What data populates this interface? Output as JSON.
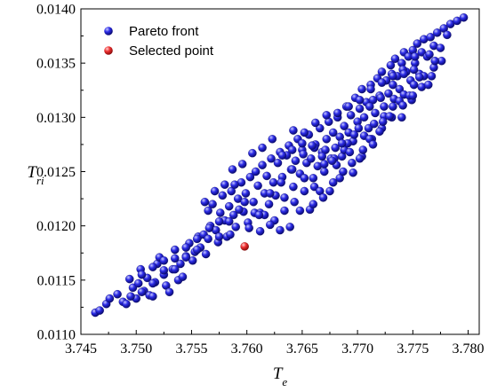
{
  "chart_data": {
    "type": "scatter",
    "xlabel": "T",
    "xlabel_sub": "e",
    "ylabel": "T",
    "ylabel_sub": "ri",
    "xlim": [
      3.745,
      3.781
    ],
    "ylim": [
      0.011,
      0.014
    ],
    "x_ticks": [
      3.745,
      3.75,
      3.755,
      3.76,
      3.765,
      3.77,
      3.775,
      3.78
    ],
    "x_tick_labels": [
      "3.745",
      "3.750",
      "3.755",
      "3.760",
      "3.765",
      "3.770",
      "3.775",
      "3.780"
    ],
    "y_ticks": [
      0.011,
      0.0115,
      0.012,
      0.0125,
      0.013,
      0.0135,
      0.014
    ],
    "y_tick_labels": [
      "0.0110",
      "0.0115",
      "0.0120",
      "0.0125",
      "0.0130",
      "0.0135",
      "0.0140"
    ],
    "grid": false,
    "legend_position": "top-left",
    "series": [
      {
        "name": "Pareto front",
        "color": "#2b2bd6",
        "points": [
          [
            3.7463,
            0.0112
          ],
          [
            3.7467,
            0.01122
          ],
          [
            3.7473,
            0.01128
          ],
          [
            3.7476,
            0.01133
          ],
          [
            3.7483,
            0.01137
          ],
          [
            3.7488,
            0.0113
          ],
          [
            3.7491,
            0.01128
          ],
          [
            3.7494,
            0.01151
          ],
          [
            3.7497,
            0.01143
          ],
          [
            3.75,
            0.01133
          ],
          [
            3.7502,
            0.01147
          ],
          [
            3.7504,
            0.0116
          ],
          [
            3.7507,
            0.0114
          ],
          [
            3.751,
            0.01152
          ],
          [
            3.7512,
            0.01136
          ],
          [
            3.7515,
            0.01135
          ],
          [
            3.7517,
            0.01148
          ],
          [
            3.7519,
            0.01165
          ],
          [
            3.7521,
            0.01171
          ],
          [
            3.7525,
            0.01155
          ],
          [
            3.7527,
            0.01145
          ],
          [
            3.753,
            0.01139
          ],
          [
            3.7533,
            0.0116
          ],
          [
            3.7535,
            0.01178
          ],
          [
            3.7538,
            0.0115
          ],
          [
            3.754,
            0.01165
          ],
          [
            3.7542,
            0.01153
          ],
          [
            3.7545,
            0.01172
          ],
          [
            3.7548,
            0.01184
          ],
          [
            3.7551,
            0.01168
          ],
          [
            3.7553,
            0.01176
          ],
          [
            3.7556,
            0.0119
          ],
          [
            3.7558,
            0.0118
          ],
          [
            3.7561,
            0.01192
          ],
          [
            3.7563,
            0.01174
          ],
          [
            3.7565,
            0.01214
          ],
          [
            3.7567,
            0.012
          ],
          [
            3.7569,
            0.0122
          ],
          [
            3.7572,
            0.01196
          ],
          [
            3.7574,
            0.01185
          ],
          [
            3.7576,
            0.01212
          ],
          [
            3.7578,
            0.01228
          ],
          [
            3.758,
            0.01205
          ],
          [
            3.7582,
            0.0119
          ],
          [
            3.7584,
            0.01218
          ],
          [
            3.7586,
            0.01232
          ],
          [
            3.7588,
            0.0121
          ],
          [
            3.759,
            0.01199
          ],
          [
            3.7592,
            0.01225
          ],
          [
            3.7595,
            0.0124
          ],
          [
            3.7597,
            0.01213
          ],
          [
            3.7599,
            0.0123
          ],
          [
            3.7601,
            0.01203
          ],
          [
            3.7603,
            0.01245
          ],
          [
            3.7606,
            0.01222
          ],
          [
            3.7608,
            0.0125
          ],
          [
            3.761,
            0.01237
          ],
          [
            3.7612,
            0.01212
          ],
          [
            3.7614,
            0.01256
          ],
          [
            3.7616,
            0.0123
          ],
          [
            3.7618,
            0.01246
          ],
          [
            3.762,
            0.0122
          ],
          [
            3.7622,
            0.01262
          ],
          [
            3.7624,
            0.0124
          ],
          [
            3.7626,
            0.01228
          ],
          [
            3.7628,
            0.01258
          ],
          [
            3.763,
            0.01268
          ],
          [
            3.7632,
            0.01245
          ],
          [
            3.7634,
            0.01226
          ],
          [
            3.7636,
            0.01265
          ],
          [
            3.7638,
            0.01274
          ],
          [
            3.764,
            0.01252
          ],
          [
            3.7642,
            0.01236
          ],
          [
            3.7644,
            0.0126
          ],
          [
            3.7646,
            0.0128
          ],
          [
            3.7648,
            0.01248
          ],
          [
            3.765,
            0.0127
          ],
          [
            3.7652,
            0.01232
          ],
          [
            3.7654,
            0.01258
          ],
          [
            3.7656,
            0.01284
          ],
          [
            3.7658,
            0.01262
          ],
          [
            3.766,
            0.01244
          ],
          [
            3.7662,
            0.01275
          ],
          [
            3.7664,
            0.01255
          ],
          [
            3.7666,
            0.0129
          ],
          [
            3.7668,
            0.01268
          ],
          [
            3.767,
            0.0125
          ],
          [
            3.7672,
            0.0128
          ],
          [
            3.7674,
            0.01296
          ],
          [
            3.7676,
            0.01262
          ],
          [
            3.7678,
            0.01286
          ],
          [
            3.768,
            0.01272
          ],
          [
            3.7682,
            0.013
          ],
          [
            3.7684,
            0.01282
          ],
          [
            3.7686,
            0.01264
          ],
          [
            3.7688,
            0.01292
          ],
          [
            3.769,
            0.0131
          ],
          [
            3.7692,
            0.01286
          ],
          [
            3.7694,
            0.01302
          ],
          [
            3.7696,
            0.01278
          ],
          [
            3.7698,
            0.01318
          ],
          [
            3.77,
            0.01296
          ],
          [
            3.7702,
            0.01308
          ],
          [
            3.7704,
            0.01326
          ],
          [
            3.7706,
            0.013
          ],
          [
            3.7708,
            0.01314
          ],
          [
            3.771,
            0.0129
          ],
          [
            3.7712,
            0.0133
          ],
          [
            3.7714,
            0.01316
          ],
          [
            3.7716,
            0.01304
          ],
          [
            3.7718,
            0.01336
          ],
          [
            3.772,
            0.0132
          ],
          [
            3.7722,
            0.01342
          ],
          [
            3.7724,
            0.0131
          ],
          [
            3.7726,
            0.01334
          ],
          [
            3.7728,
            0.01322
          ],
          [
            3.773,
            0.01348
          ],
          [
            3.7732,
            0.0133
          ],
          [
            3.7734,
            0.01354
          ],
          [
            3.7736,
            0.01338
          ],
          [
            3.7738,
            0.01326
          ],
          [
            3.774,
            0.0135
          ],
          [
            3.7742,
            0.0136
          ],
          [
            3.7744,
            0.01342
          ],
          [
            3.7746,
            0.01356
          ],
          [
            3.7748,
            0.01334
          ],
          [
            3.775,
            0.01362
          ],
          [
            3.7752,
            0.0135
          ],
          [
            3.7754,
            0.01368
          ],
          [
            3.7756,
            0.0134
          ],
          [
            3.7758,
            0.0136
          ],
          [
            3.776,
            0.01372
          ],
          [
            3.7763,
            0.01356
          ],
          [
            3.7766,
            0.01374
          ],
          [
            3.7769,
            0.01366
          ],
          [
            3.7772,
            0.01378
          ],
          [
            3.7775,
            0.01364
          ],
          [
            3.7778,
            0.01382
          ],
          [
            3.7781,
            0.01376
          ],
          [
            3.7784,
            0.01386
          ],
          [
            3.779,
            0.01389
          ],
          [
            3.7796,
            0.01392
          ],
          [
            3.7562,
            0.01222
          ],
          [
            3.7571,
            0.01232
          ],
          [
            3.758,
            0.01238
          ],
          [
            3.7589,
            0.01238
          ],
          [
            3.7598,
            0.01222
          ],
          [
            3.7607,
            0.01212
          ],
          [
            3.7616,
            0.0121
          ],
          [
            3.7625,
            0.01205
          ],
          [
            3.7634,
            0.01214
          ],
          [
            3.7643,
            0.01222
          ],
          [
            3.7652,
            0.01244
          ],
          [
            3.7661,
            0.01236
          ],
          [
            3.767,
            0.01257
          ],
          [
            3.7679,
            0.01262
          ],
          [
            3.7688,
            0.0127
          ],
          [
            3.7697,
            0.01284
          ],
          [
            3.7706,
            0.01283
          ],
          [
            3.7715,
            0.01294
          ],
          [
            3.7724,
            0.01301
          ],
          [
            3.7733,
            0.01317
          ],
          [
            3.7742,
            0.01321
          ],
          [
            3.7751,
            0.0133
          ],
          [
            3.776,
            0.01338
          ],
          [
            3.7769,
            0.01346
          ],
          [
            3.7566,
            0.01198
          ],
          [
            3.7575,
            0.01204
          ],
          [
            3.7584,
            0.01204
          ],
          [
            3.7593,
            0.01215
          ],
          [
            3.7602,
            0.01198
          ],
          [
            3.7611,
            0.0121
          ],
          [
            3.7621,
            0.0123
          ],
          [
            3.7631,
            0.0124
          ],
          [
            3.7641,
            0.01252
          ],
          [
            3.7651,
            0.01266
          ],
          [
            3.7661,
            0.01272
          ],
          [
            3.7671,
            0.0127
          ],
          [
            3.7681,
            0.01256
          ],
          [
            3.7691,
            0.01276
          ],
          [
            3.7701,
            0.0129
          ],
          [
            3.7711,
            0.0131
          ],
          [
            3.7721,
            0.01318
          ],
          [
            3.7731,
            0.0134
          ],
          [
            3.7741,
            0.01344
          ],
          [
            3.7751,
            0.01344
          ],
          [
            3.7587,
            0.01252
          ],
          [
            3.7596,
            0.01257
          ],
          [
            3.7605,
            0.01267
          ],
          [
            3.7614,
            0.01272
          ],
          [
            3.7623,
            0.0128
          ],
          [
            3.7632,
            0.01265
          ],
          [
            3.7641,
            0.0127
          ],
          [
            3.765,
            0.01276
          ],
          [
            3.7659,
            0.01274
          ],
          [
            3.7668,
            0.01264
          ],
          [
            3.7677,
            0.0126
          ],
          [
            3.7686,
            0.01276
          ],
          [
            3.7695,
            0.01258
          ],
          [
            3.7704,
            0.01264
          ],
          [
            3.7713,
            0.0128
          ],
          [
            3.7722,
            0.0129
          ],
          [
            3.7731,
            0.013
          ],
          [
            3.774,
            0.013
          ],
          [
            3.7749,
            0.01316
          ],
          [
            3.7758,
            0.01328
          ],
          [
            3.7767,
            0.01338
          ],
          [
            3.7776,
            0.01352
          ],
          [
            3.7612,
            0.01195
          ],
          [
            3.7621,
            0.01201
          ],
          [
            3.763,
            0.01196
          ],
          [
            3.7639,
            0.01199
          ],
          [
            3.7648,
            0.01214
          ],
          [
            3.7657,
            0.01215
          ],
          [
            3.7666,
            0.01232
          ],
          [
            3.7675,
            0.01232
          ],
          [
            3.7684,
            0.01244
          ],
          [
            3.7693,
            0.01268
          ],
          [
            3.7702,
            0.01262
          ],
          [
            3.7711,
            0.0128
          ],
          [
            3.772,
            0.01287
          ],
          [
            3.7729,
            0.01301
          ],
          [
            3.7738,
            0.01315
          ],
          [
            3.7747,
            0.0132
          ],
          [
            3.7756,
            0.01337
          ],
          [
            3.7765,
            0.01358
          ],
          [
            3.7495,
            0.01135
          ],
          [
            3.7505,
            0.01139
          ],
          [
            3.7515,
            0.01147
          ],
          [
            3.7525,
            0.01159
          ],
          [
            3.7535,
            0.0116
          ],
          [
            3.7545,
            0.01171
          ],
          [
            3.7555,
            0.01188
          ],
          [
            3.7565,
            0.01188
          ],
          [
            3.7575,
            0.0119
          ],
          [
            3.7585,
            0.01192
          ],
          [
            3.7505,
            0.01155
          ],
          [
            3.7515,
            0.01162
          ],
          [
            3.7525,
            0.01168
          ],
          [
            3.7535,
            0.0117
          ],
          [
            3.7545,
            0.0118
          ],
          [
            3.7555,
            0.01178
          ],
          [
            3.7642,
            0.01288
          ],
          [
            3.7652,
            0.01286
          ],
          [
            3.7662,
            0.01295
          ],
          [
            3.7672,
            0.01302
          ],
          [
            3.7682,
            0.01304
          ],
          [
            3.7692,
            0.0131
          ],
          [
            3.7702,
            0.01316
          ],
          [
            3.7712,
            0.01326
          ],
          [
            3.7722,
            0.01332
          ],
          [
            3.7732,
            0.01338
          ],
          [
            3.7742,
            0.0134
          ],
          [
            3.7752,
            0.01356
          ],
          [
            3.766,
            0.0122
          ],
          [
            3.7669,
            0.01226
          ],
          [
            3.7678,
            0.0124
          ],
          [
            3.7687,
            0.0125
          ],
          [
            3.7696,
            0.01249
          ],
          [
            3.7705,
            0.0127
          ],
          [
            3.7714,
            0.01275
          ],
          [
            3.7723,
            0.01296
          ],
          [
            3.7732,
            0.0131
          ],
          [
            3.7741,
            0.01311
          ],
          [
            3.775,
            0.0132
          ],
          [
            3.7764,
            0.0133
          ],
          [
            3.777,
            0.01352
          ]
        ]
      },
      {
        "name": "Selected point",
        "color": "#e03030",
        "points": [
          [
            3.7598,
            0.01181
          ]
        ]
      }
    ]
  }
}
